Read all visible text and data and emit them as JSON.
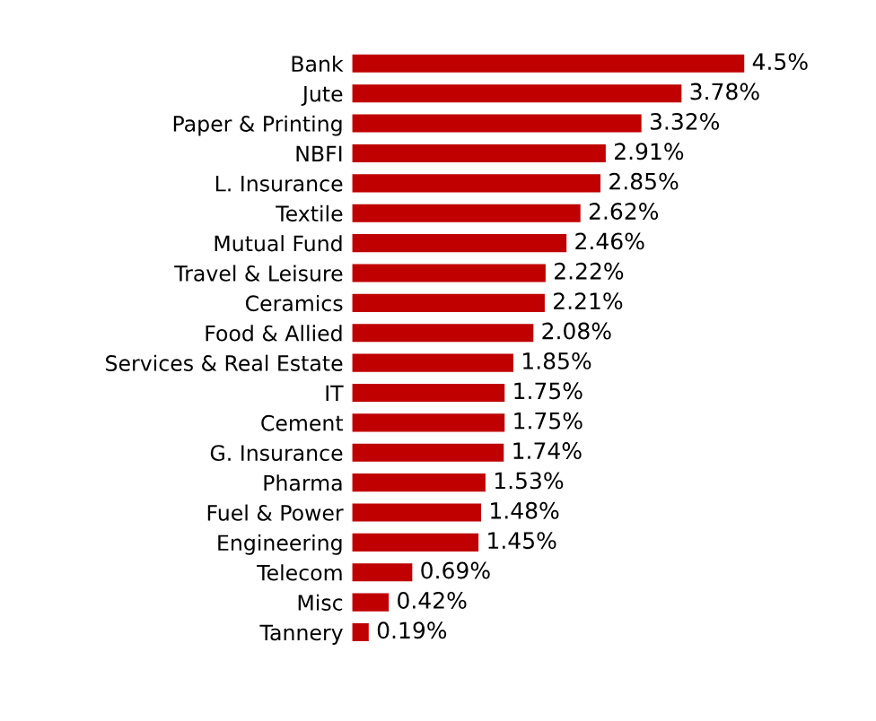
{
  "chart_data": {
    "type": "bar",
    "orientation": "horizontal",
    "categories": [
      "Bank",
      "Jute",
      "Paper & Printing",
      "NBFI",
      "L. Insurance",
      "Textile",
      "Mutual Fund",
      "Travel & Leisure",
      "Ceramics",
      "Food & Allied",
      "Services & Real Estate",
      "IT",
      "Cement",
      "G. Insurance",
      "Pharma",
      "Fuel & Power",
      "Engineering",
      "Telecom",
      "Misc",
      "Tannery"
    ],
    "values": [
      4.5,
      3.78,
      3.32,
      2.91,
      2.85,
      2.62,
      2.46,
      2.22,
      2.21,
      2.08,
      1.85,
      1.75,
      1.75,
      1.74,
      1.53,
      1.48,
      1.45,
      0.69,
      0.42,
      0.19
    ],
    "value_labels": [
      "4.5%",
      "3.78%",
      "3.32%",
      "2.91%",
      "2.85%",
      "2.62%",
      "2.46%",
      "2.22%",
      "2.21%",
      "2.08%",
      "1.85%",
      "1.75%",
      "1.75%",
      "1.74%",
      "1.53%",
      "1.48%",
      "1.45%",
      "0.69%",
      "0.42%",
      "0.19%"
    ],
    "color": "#c00000",
    "tick_labels": "y",
    "grid": false,
    "legend": false
  }
}
